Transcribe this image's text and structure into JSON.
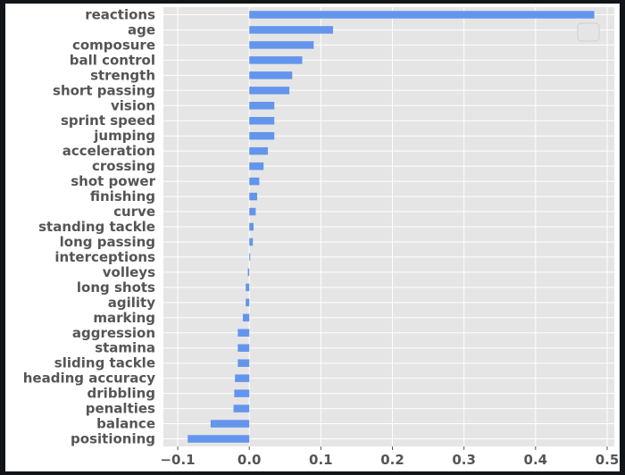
{
  "chart_data": {
    "type": "bar",
    "orientation": "horizontal",
    "title": "",
    "xlabel": "",
    "ylabel": "",
    "xlim": [
      -0.12,
      0.51
    ],
    "grid": true,
    "legend": "top-right (empty)",
    "bar_color": "#6495ed",
    "background_color": "#e5e5e5",
    "categories": [
      "reactions",
      "age",
      "composure",
      "ball control",
      "strength",
      "short passing",
      "vision",
      "sprint speed",
      "jumping",
      "acceleration",
      "crossing",
      "shot power",
      "finishing",
      "curve",
      "standing tackle",
      "long passing",
      "interceptions",
      "volleys",
      "long shots",
      "agility",
      "marking",
      "aggression",
      "stamina",
      "sliding tackle",
      "heading accuracy",
      "dribbling",
      "penalties",
      "balance",
      "positioning"
    ],
    "values": [
      0.482,
      0.117,
      0.09,
      0.074,
      0.06,
      0.056,
      0.035,
      0.035,
      0.035,
      0.026,
      0.02,
      0.014,
      0.011,
      0.009,
      0.006,
      0.005,
      0.001,
      -0.002,
      -0.005,
      -0.005,
      -0.009,
      -0.016,
      -0.016,
      -0.016,
      -0.02,
      -0.021,
      -0.022,
      -0.054,
      -0.086
    ],
    "xticks": [
      -0.1,
      0.0,
      0.1,
      0.2,
      0.3,
      0.4,
      0.5
    ],
    "xtick_labels": [
      "−0.1",
      "0.0",
      "0.1",
      "0.2",
      "0.3",
      "0.4",
      "0.5"
    ]
  }
}
